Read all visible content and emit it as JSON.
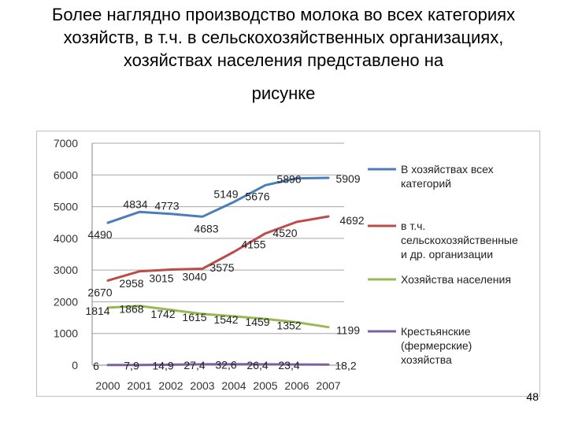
{
  "slide": {
    "heading": "Более наглядно производство молока во всех категориях хозяйств, в т.ч. в сельскохозяйственных организациях, хозяйствах населения представлено на",
    "heading_tail": "рисунке",
    "page_number": "48"
  },
  "chart_data": {
    "type": "line",
    "title": "",
    "xlabel": "",
    "ylabel": "",
    "ylim": [
      0,
      7000
    ],
    "y_ticks": [
      "0",
      "1000",
      "2000",
      "3000",
      "4000",
      "5000",
      "6000",
      "7000"
    ],
    "categories": [
      "2000",
      "2001",
      "2002",
      "2003",
      "2004",
      "2005",
      "2006",
      "2007"
    ],
    "grid": "horizontal",
    "legend_position": "right",
    "series": [
      {
        "legend": [
          "В хозяйствах всех",
          "категорий"
        ],
        "color": "#4a7ebb",
        "values": [
          4490,
          4834,
          4773,
          4683,
          5149,
          5676,
          5896,
          5909
        ],
        "labels": [
          "4490",
          "4834",
          "4773",
          "4683",
          "5149",
          "5676",
          "5896",
          "5909"
        ]
      },
      {
        "legend": [
          "в т.ч.",
          "сельскохозяйственные",
          "и др. организации"
        ],
        "color": "#be4b48",
        "values": [
          2670,
          2958,
          3015,
          3040,
          3575,
          4155,
          4520,
          4692
        ],
        "labels": [
          "2670",
          "2958",
          "3015",
          "3040",
          "3575",
          "4155",
          "4520",
          "4692"
        ]
      },
      {
        "legend": [
          "Хозяйства населения"
        ],
        "color": "#98b954",
        "values": [
          1814,
          1868,
          1742,
          1615,
          1542,
          1459,
          1352,
          1199
        ],
        "labels": [
          "1814",
          "1868",
          "1742",
          "1615",
          "1542",
          "1459",
          "1352",
          "1199"
        ]
      },
      {
        "legend": [
          "Крестьянские",
          "(фермерские)",
          "хозяйства"
        ],
        "color": "#7d60a0",
        "values": [
          6,
          7.9,
          14.9,
          27.4,
          32.6,
          26.4,
          23.4,
          18.2
        ],
        "labels": [
          "6",
          "7,9",
          "14,9",
          "27,4",
          "32,6",
          "26,4",
          "23,4",
          "18,2"
        ]
      }
    ]
  }
}
